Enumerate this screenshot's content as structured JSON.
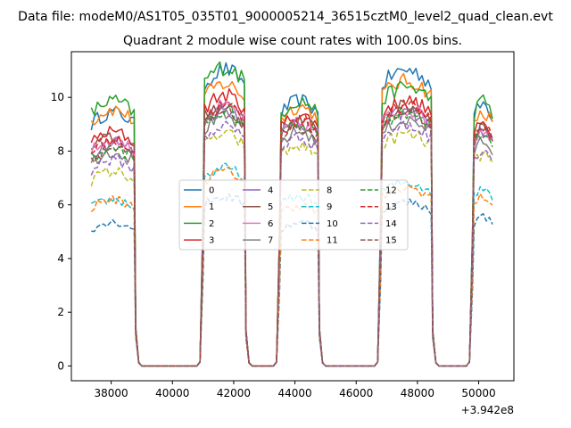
{
  "header": {
    "suptitle": "Data file: modeM0/AS1T05_035T01_9000005214_36515cztM0_level2_quad_clean.evt"
  },
  "chart_data": {
    "type": "line",
    "title": "Quadrant 2 module wise count rates with 100.0s bins.",
    "xlabel": "",
    "ylabel": "",
    "x_offset_label": "+3.942e8",
    "xlim": [
      36700,
      51150
    ],
    "ylim": [
      -0.55,
      11.7
    ],
    "xticks": [
      38000,
      40000,
      42000,
      44000,
      46000,
      48000,
      50000
    ],
    "xtick_labels": [
      "38000",
      "40000",
      "42000",
      "44000",
      "46000",
      "48000",
      "50000"
    ],
    "yticks": [
      0,
      2,
      4,
      6,
      8,
      10
    ],
    "ytick_labels": [
      "0",
      "2",
      "4",
      "6",
      "8",
      "10"
    ],
    "grid": false,
    "legend_position": "center",
    "legend_columns": 4,
    "bin_size_s": 100,
    "visibility_windows": [
      {
        "start": 37350,
        "end": 38750
      },
      {
        "start": 41050,
        "end": 42350
      },
      {
        "start": 43550,
        "end": 44750
      },
      {
        "start": 46850,
        "end": 48450
      },
      {
        "start": 49850,
        "end": 50450
      }
    ],
    "series": [
      {
        "name": "0",
        "color": "#1f77b4",
        "style": "solid",
        "window_levels": [
          9.0,
          10.5,
          9.4,
          10.5,
          9.3
        ]
      },
      {
        "name": "1",
        "color": "#ff7f0e",
        "style": "solid",
        "window_levels": [
          9.1,
          10.0,
          9.2,
          10.1,
          9.0
        ]
      },
      {
        "name": "2",
        "color": "#2ca02c",
        "style": "solid",
        "window_levels": [
          9.4,
          10.6,
          9.4,
          9.9,
          9.4
        ]
      },
      {
        "name": "3",
        "color": "#d62728",
        "style": "solid",
        "window_levels": [
          8.3,
          9.6,
          8.9,
          9.4,
          8.6
        ]
      },
      {
        "name": "4",
        "color": "#9467bd",
        "style": "solid",
        "window_levels": [
          7.9,
          9.1,
          8.6,
          9.0,
          8.3
        ]
      },
      {
        "name": "5",
        "color": "#8c564b",
        "style": "solid",
        "window_levels": [
          8.1,
          9.3,
          8.7,
          9.2,
          8.5
        ]
      },
      {
        "name": "6",
        "color": "#e377c2",
        "style": "solid",
        "window_levels": [
          8.0,
          9.2,
          8.6,
          9.1,
          8.4
        ]
      },
      {
        "name": "7",
        "color": "#7f7f7f",
        "style": "solid",
        "window_levels": [
          7.6,
          8.8,
          8.3,
          8.7,
          8.0
        ]
      },
      {
        "name": "8",
        "color": "#bcbd22",
        "style": "dashed",
        "window_levels": [
          6.9,
          8.2,
          7.8,
          8.2,
          7.5
        ]
      },
      {
        "name": "9",
        "color": "#17becf",
        "style": "dashed",
        "window_levels": [
          5.9,
          7.0,
          6.0,
          6.5,
          6.3
        ]
      },
      {
        "name": "10",
        "color": "#1f77b4",
        "style": "dashed",
        "window_levels": [
          5.1,
          6.0,
          5.1,
          5.8,
          5.3
        ]
      },
      {
        "name": "11",
        "color": "#ff7f0e",
        "style": "dashed",
        "window_levels": [
          5.9,
          6.9,
          5.7,
          6.3,
          6.0
        ]
      },
      {
        "name": "12",
        "color": "#2ca02c",
        "style": "dashed",
        "window_levels": [
          7.7,
          9.0,
          8.6,
          9.0,
          8.2
        ]
      },
      {
        "name": "13",
        "color": "#d62728",
        "style": "dashed",
        "window_levels": [
          8.0,
          9.2,
          8.7,
          9.2,
          8.5
        ]
      },
      {
        "name": "14",
        "color": "#9467bd",
        "style": "dashed",
        "window_levels": [
          7.3,
          8.5,
          8.1,
          8.5,
          7.7
        ]
      },
      {
        "name": "15",
        "color": "#8c564b",
        "style": "dashed",
        "window_levels": [
          7.7,
          9.0,
          8.5,
          8.9,
          8.3
        ]
      }
    ]
  }
}
